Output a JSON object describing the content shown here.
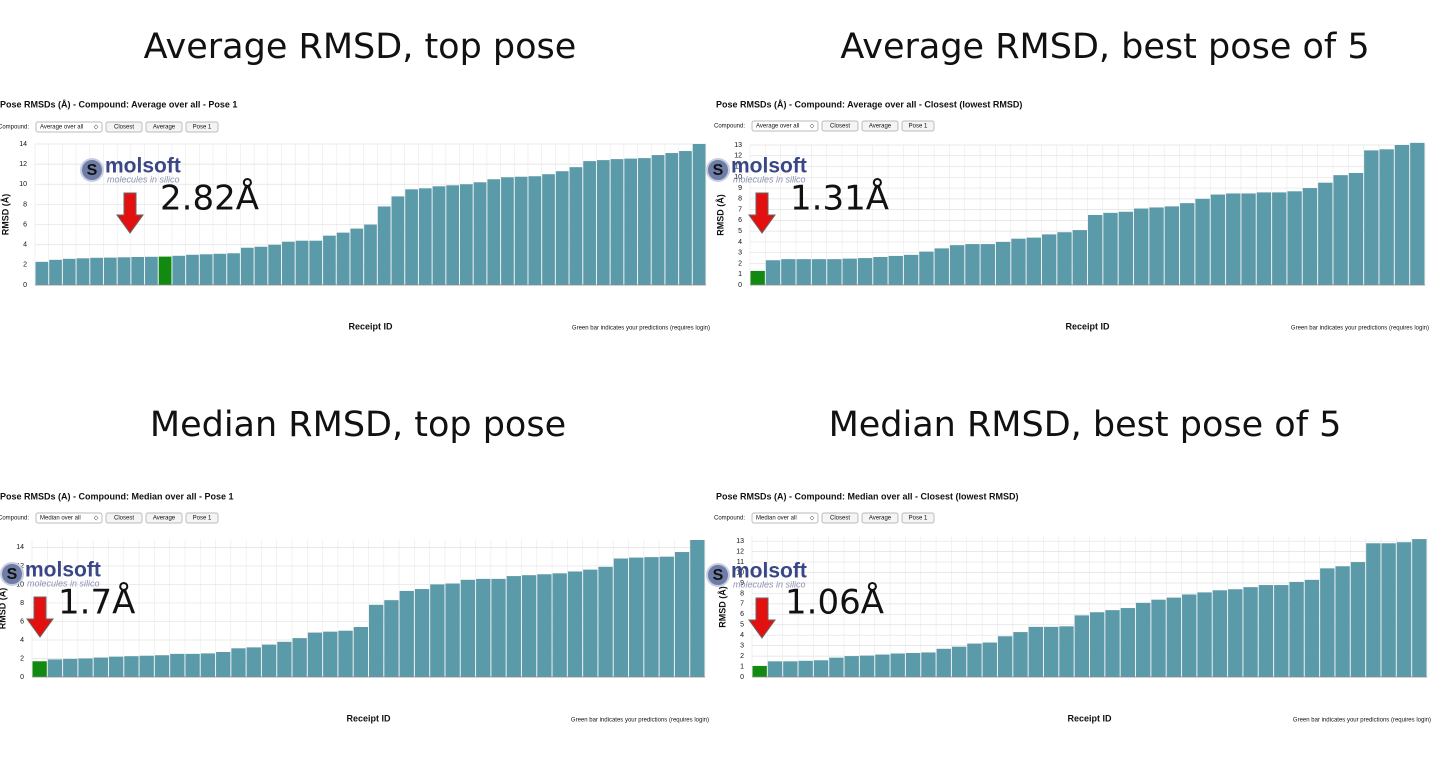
{
  "chart_data": [
    {
      "type": "bar",
      "heading": "Average RMSD, top pose",
      "title": "Pose RMSDs (Å) - Compound: Average over all - Pose 1",
      "controls": {
        "label": "Compound:",
        "select": "Average over all",
        "buttons": [
          "Closest",
          "Average",
          "Pose 1"
        ]
      },
      "ylabel": "RMSD (Å)",
      "xlabel": "Receipt ID",
      "footnote": "Green bar indicates your predictions (requires login)",
      "logo": "molsoft",
      "logo_tagline": "molecules in silico",
      "annotation": "2.82Å",
      "color": "#5b9aa8",
      "highlight": {
        "index": 9,
        "color": "#128a12"
      },
      "grid": true,
      "ylim": [
        0,
        14
      ],
      "yticks": [
        0,
        2,
        4,
        6,
        8,
        10,
        12,
        14
      ],
      "categories": [
        null,
        null,
        null,
        null,
        null,
        null,
        null,
        null,
        null,
        null,
        null,
        null,
        null,
        null,
        null,
        null,
        null,
        null,
        null,
        null,
        null,
        null,
        null,
        null,
        null,
        null,
        null,
        null,
        null,
        null,
        null,
        null,
        null,
        null,
        null,
        null,
        null,
        null,
        null,
        null,
        null,
        null,
        null,
        null,
        null,
        null,
        null,
        null,
        null
      ],
      "values": [
        2.3,
        2.5,
        2.6,
        2.65,
        2.7,
        2.72,
        2.75,
        2.78,
        2.8,
        2.82,
        2.9,
        3.0,
        3.05,
        3.1,
        3.15,
        3.7,
        3.8,
        4.0,
        4.3,
        4.4,
        4.4,
        4.9,
        5.2,
        5.6,
        6.0,
        7.8,
        8.8,
        9.5,
        9.6,
        9.8,
        9.9,
        10.0,
        10.2,
        10.5,
        10.7,
        10.75,
        10.8,
        11.0,
        11.3,
        11.7,
        12.3,
        12.4,
        12.5,
        12.55,
        12.6,
        12.9,
        13.1,
        13.3,
        14.0
      ]
    },
    {
      "type": "bar",
      "heading": "Average RMSD, best pose of 5",
      "title": "Pose RMSDs (Å) - Compound: Average over all - Closest (lowest RMSD)",
      "controls": {
        "label": "Compound:",
        "select": "Average over all",
        "buttons": [
          "Closest",
          "Average",
          "Pose 1"
        ]
      },
      "ylabel": "RMSD (Å)",
      "xlabel": "Receipt ID",
      "footnote": "Green bar indicates your predictions (requires login)",
      "logo": "molsoft",
      "logo_tagline": "molecules in silico",
      "annotation": "1.31Å",
      "color": "#5b9aa8",
      "highlight": {
        "index": 0,
        "color": "#128a12"
      },
      "grid": true,
      "ylim": [
        0,
        13
      ],
      "yticks": [
        0,
        1,
        2,
        3,
        4,
        5,
        6,
        7,
        8,
        9,
        10,
        11,
        12,
        13
      ],
      "categories": [
        null,
        null,
        null,
        null,
        null,
        null,
        null,
        null,
        null,
        null,
        null,
        null,
        null,
        null,
        null,
        null,
        null,
        null,
        null,
        null,
        null,
        null,
        null,
        null,
        null,
        null,
        null,
        null,
        null,
        null,
        null,
        null,
        null,
        null,
        null,
        null,
        null,
        null,
        null,
        null,
        null,
        null,
        null,
        null
      ],
      "values": [
        1.31,
        2.3,
        2.4,
        2.4,
        2.4,
        2.4,
        2.45,
        2.5,
        2.6,
        2.7,
        2.8,
        3.1,
        3.4,
        3.7,
        3.8,
        3.8,
        4.0,
        4.3,
        4.4,
        4.7,
        4.9,
        5.1,
        6.5,
        6.7,
        6.8,
        7.1,
        7.2,
        7.3,
        7.6,
        8.0,
        8.4,
        8.5,
        8.5,
        8.6,
        8.6,
        8.7,
        9.0,
        9.5,
        10.2,
        10.4,
        12.5,
        12.6,
        13.0,
        13.2
      ]
    },
    {
      "type": "bar",
      "heading": "Median RMSD, top pose",
      "title": "Pose RMSDs (A) - Compound: Median over all - Pose 1",
      "controls": {
        "label": "Compound:",
        "select": "Median over all",
        "buttons": [
          "Closest",
          "Average",
          "Pose 1"
        ]
      },
      "ylabel": "RMSD (A)",
      "xlabel": "Receipt ID",
      "footnote": "Green bar indicates your predictions (requires login)",
      "logo": "molsoft",
      "logo_tagline": "molecules in silico",
      "annotation": "1.7Å",
      "color": "#5b9aa8",
      "highlight": {
        "index": 0,
        "color": "#128a12"
      },
      "grid": true,
      "ylim": [
        0,
        14.8
      ],
      "yticks": [
        0,
        2,
        4,
        6,
        8,
        10,
        12,
        14
      ],
      "categories": [
        null,
        null,
        null,
        null,
        null,
        null,
        null,
        null,
        null,
        null,
        null,
        null,
        null,
        null,
        null,
        null,
        null,
        null,
        null,
        null,
        null,
        null,
        null,
        null,
        null,
        null,
        null,
        null,
        null,
        null,
        null,
        null,
        null,
        null,
        null,
        null,
        null,
        null,
        null,
        null,
        null,
        null,
        null,
        null
      ],
      "values": [
        1.7,
        1.9,
        1.95,
        2.0,
        2.1,
        2.2,
        2.25,
        2.3,
        2.35,
        2.5,
        2.5,
        2.55,
        2.7,
        3.1,
        3.2,
        3.5,
        3.8,
        4.2,
        4.8,
        4.9,
        5.0,
        5.4,
        7.8,
        8.3,
        9.3,
        9.5,
        10.0,
        10.1,
        10.5,
        10.6,
        10.6,
        10.9,
        11.0,
        11.1,
        11.2,
        11.4,
        11.6,
        11.9,
        12.8,
        12.9,
        12.95,
        13.0,
        13.5,
        14.8
      ]
    },
    {
      "type": "bar",
      "heading": "Median RMSD, best pose of 5",
      "title": "Pose RMSDs (A) - Compound: Median over all - Closest (lowest RMSD)",
      "controls": {
        "label": "Compound:",
        "select": "Median over all",
        "buttons": [
          "Closest",
          "Average",
          "Pose 1"
        ]
      },
      "ylabel": "RMSD (Å)",
      "xlabel": "Receipt ID",
      "footnote": "Green bar indicates your predictions (requires login)",
      "logo": "molsoft",
      "logo_tagline": "molecules in silico",
      "annotation": "1.06Å",
      "color": "#5b9aa8",
      "highlight": {
        "index": 0,
        "color": "#128a12"
      },
      "grid": true,
      "ylim": [
        0,
        13.4
      ],
      "yticks": [
        0,
        1,
        2,
        3,
        4,
        5,
        6,
        7,
        8,
        9,
        10,
        11,
        12,
        13
      ],
      "categories": [
        null,
        null,
        null,
        null,
        null,
        null,
        null,
        null,
        null,
        null,
        null,
        null,
        null,
        null,
        null,
        null,
        null,
        null,
        null,
        null,
        null,
        null,
        null,
        null,
        null,
        null,
        null,
        null,
        null,
        null,
        null,
        null,
        null,
        null,
        null,
        null,
        null,
        null,
        null,
        null,
        null,
        null,
        null,
        null
      ],
      "values": [
        1.06,
        1.5,
        1.5,
        1.55,
        1.6,
        1.85,
        2.0,
        2.05,
        2.15,
        2.25,
        2.3,
        2.35,
        2.7,
        2.9,
        3.2,
        3.3,
        3.9,
        4.3,
        4.8,
        4.8,
        4.85,
        5.9,
        6.2,
        6.4,
        6.6,
        7.1,
        7.4,
        7.6,
        7.9,
        8.1,
        8.3,
        8.4,
        8.6,
        8.8,
        8.8,
        9.1,
        9.3,
        10.4,
        10.6,
        11.0,
        12.8,
        12.8,
        12.9,
        13.2
      ]
    }
  ]
}
